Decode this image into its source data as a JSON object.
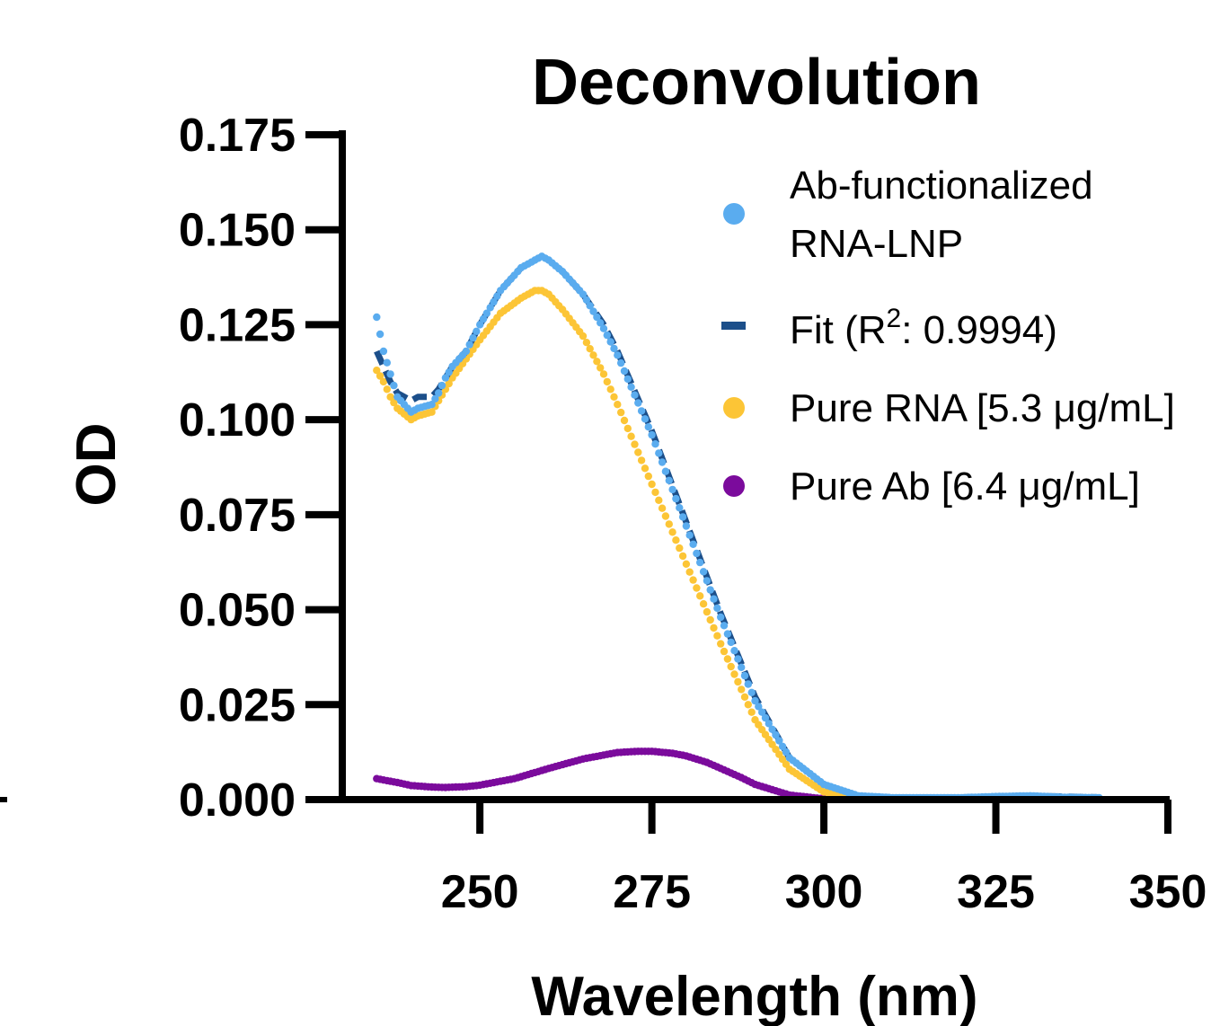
{
  "chart_data": {
    "type": "scatter",
    "title": "Deconvolution",
    "xlabel": "Wavelength (nm)",
    "ylabel": "OD",
    "xlim": [
      230,
      350
    ],
    "ylim": [
      0,
      0.175
    ],
    "xticks": [
      "250",
      "275",
      "300",
      "325",
      "350"
    ],
    "yticks": [
      "0.000",
      "0.025",
      "0.050",
      "0.075",
      "0.100",
      "0.125",
      "0.150",
      "0.175"
    ],
    "grid": false,
    "legend_position": "top-right",
    "series": [
      {
        "name": "Ab-functionalized RNA-LNP",
        "legend_lines": [
          "Ab-functionalized",
          "RNA-LNP"
        ],
        "style": "dots",
        "color": "#5aacef",
        "x": [
          235,
          236,
          237,
          238,
          240,
          241,
          243,
          244,
          245,
          246,
          248,
          250,
          253,
          256,
          258,
          259,
          260,
          262,
          265,
          268,
          270,
          275,
          280,
          285,
          290,
          295,
          300,
          305,
          310,
          315,
          320,
          325,
          330,
          335,
          340
        ],
        "y": [
          0.127,
          0.118,
          0.112,
          0.106,
          0.102,
          0.103,
          0.104,
          0.107,
          0.111,
          0.114,
          0.118,
          0.125,
          0.134,
          0.14,
          0.142,
          0.143,
          0.142,
          0.139,
          0.133,
          0.124,
          0.117,
          0.096,
          0.072,
          0.048,
          0.026,
          0.011,
          0.004,
          0.001,
          0.0005,
          0.0005,
          0.0005,
          0.0008,
          0.001,
          0.0006,
          0.0005
        ]
      },
      {
        "name": "Fit (R²: 0.9994)",
        "legend_prefix": "Fit (R",
        "legend_sup": "2",
        "legend_suffix": ": 0.9994)",
        "style": "dashed",
        "color": "#1c4f8a",
        "x": [
          235,
          236,
          237,
          238,
          240,
          241,
          243,
          244,
          245,
          246,
          248,
          250,
          253,
          256,
          258,
          259,
          260,
          262,
          265,
          268,
          270,
          275,
          280,
          285,
          290,
          295,
          300,
          305,
          310,
          315,
          320,
          325,
          330,
          335,
          340
        ],
        "y": [
          0.118,
          0.114,
          0.11,
          0.107,
          0.105,
          0.106,
          0.106,
          0.108,
          0.111,
          0.114,
          0.118,
          0.125,
          0.134,
          0.14,
          0.142,
          0.143,
          0.142,
          0.139,
          0.133,
          0.125,
          0.118,
          0.097,
          0.073,
          0.049,
          0.027,
          0.011,
          0.004,
          0.001,
          0.0006,
          0.0006,
          0.0006,
          0.0008,
          0.001,
          0.0008,
          0.0006
        ]
      },
      {
        "name": "Pure RNA [5.3 μg/mL]",
        "style": "dots",
        "color": "#fcc536",
        "x": [
          235,
          236,
          237,
          238,
          240,
          241,
          243,
          244,
          245,
          246,
          248,
          250,
          253,
          256,
          258,
          259,
          260,
          262,
          265,
          268,
          270,
          275,
          280,
          285,
          290,
          295,
          300,
          305,
          310,
          315,
          320,
          325,
          330,
          335,
          340
        ],
        "y": [
          0.113,
          0.11,
          0.106,
          0.103,
          0.1,
          0.101,
          0.102,
          0.105,
          0.108,
          0.111,
          0.116,
          0.121,
          0.128,
          0.132,
          0.134,
          0.134,
          0.133,
          0.129,
          0.122,
          0.112,
          0.104,
          0.083,
          0.062,
          0.041,
          0.021,
          0.008,
          0.002,
          0.0006,
          0.0003,
          0.0003,
          0.0003,
          0.0003,
          0.0003,
          0.0003,
          0.0003
        ]
      },
      {
        "name": "Pure Ab [6.4 μg/mL]",
        "style": "dots",
        "color": "#7b0b9c",
        "x": [
          235,
          238,
          240,
          243,
          245,
          248,
          250,
          255,
          260,
          265,
          270,
          273,
          275,
          278,
          280,
          283,
          285,
          288,
          290,
          295,
          300,
          305,
          310,
          315,
          320,
          325,
          330,
          335,
          340
        ],
        "y": [
          0.0055,
          0.0045,
          0.0037,
          0.0033,
          0.0032,
          0.0034,
          0.0038,
          0.0055,
          0.0082,
          0.0107,
          0.0124,
          0.0127,
          0.0127,
          0.0122,
          0.0115,
          0.0098,
          0.0082,
          0.0058,
          0.004,
          0.0012,
          0.0002,
          0.0001,
          0.0001,
          0.0001,
          0.0001,
          0.0001,
          0.0001,
          0.0001,
          0.0001
        ]
      }
    ]
  },
  "colors": {
    "ab_functionalized": "#5aacef",
    "fit": "#1c4f8a",
    "pure_rna": "#fcc536",
    "pure_ab": "#7b0b9c",
    "axis": "#000000"
  }
}
